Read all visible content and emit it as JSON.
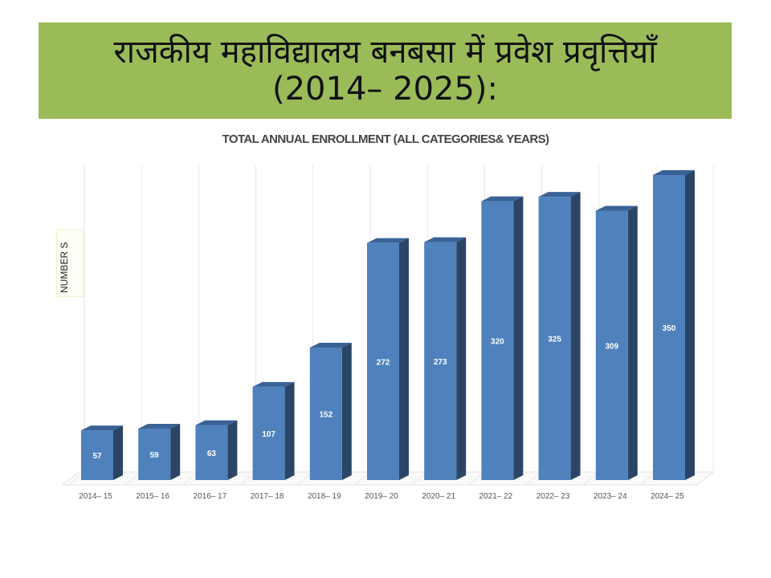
{
  "header": {
    "title_line1": "राजकीय महाविद्यालय बनबसा में प्रवेश प्रवृत्तियाँ",
    "title_line2": "(2014–  2025):"
  },
  "chart_data": {
    "type": "bar",
    "title": "TOTAL ANNUAL ENROLLMENT (ALL CATEGORIES& YEARS)",
    "xlabel": "",
    "ylabel": "NUMBERS",
    "ylabel_display": "NUMBER S",
    "categories": [
      "2014– 15",
      "2015– 16",
      "2016– 17",
      "2017– 18",
      "2018– 19",
      "2019– 20",
      "2020– 21",
      "2021– 22",
      "2022– 23",
      "2023– 24",
      "2024– 25"
    ],
    "values": [
      57,
      59,
      63,
      107,
      152,
      272,
      273,
      320,
      325,
      309,
      350
    ],
    "ylim": [
      0,
      350
    ],
    "grid": true,
    "style": "3d-column",
    "colors": {
      "front": "#4f81bd",
      "side": "#2a4566",
      "top": "#3a6296",
      "banner": "#9bbb59"
    }
  }
}
